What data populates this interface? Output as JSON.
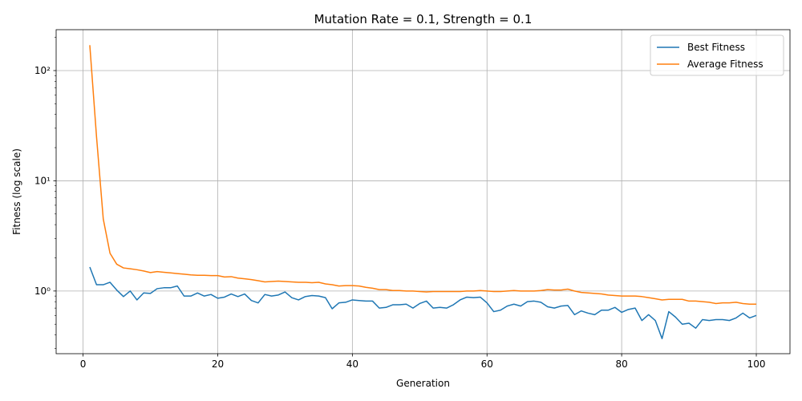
{
  "chart_data": {
    "type": "line",
    "title": "Mutation Rate = 0.1, Strength = 0.1",
    "xlabel": "Generation",
    "ylabel": "Fitness (log scale)",
    "xlim": [
      -4,
      105
    ],
    "ylim": [
      0.27,
      235
    ],
    "yscale": "log",
    "grid": true,
    "legend_position": "top-right",
    "x_ticks": [
      0,
      20,
      40,
      60,
      80,
      100
    ],
    "x_tick_labels": [
      "0",
      "20",
      "40",
      "60",
      "80",
      "100"
    ],
    "y_ticks": [
      1,
      10,
      100
    ],
    "y_tick_labels": [
      "10⁰",
      "10¹",
      "10²"
    ],
    "x": [
      1,
      2,
      3,
      4,
      5,
      6,
      7,
      8,
      9,
      10,
      11,
      12,
      13,
      14,
      15,
      16,
      17,
      18,
      19,
      20,
      21,
      22,
      23,
      24,
      25,
      26,
      27,
      28,
      29,
      30,
      31,
      32,
      33,
      34,
      35,
      36,
      37,
      38,
      39,
      40,
      41,
      42,
      43,
      44,
      45,
      46,
      47,
      48,
      49,
      50,
      51,
      52,
      53,
      54,
      55,
      56,
      57,
      58,
      59,
      60,
      61,
      62,
      63,
      64,
      65,
      66,
      67,
      68,
      69,
      70,
      71,
      72,
      73,
      74,
      75,
      76,
      77,
      78,
      79,
      80,
      81,
      82,
      83,
      84,
      85,
      86,
      87,
      88,
      89,
      90,
      91,
      92,
      93,
      94,
      95,
      96,
      97,
      98,
      99,
      100
    ],
    "series": [
      {
        "name": "Best Fitness",
        "color": "#1f77b4",
        "values": [
          1.65,
          1.14,
          1.14,
          1.2,
          1.02,
          0.89,
          1.0,
          0.83,
          0.96,
          0.95,
          1.05,
          1.07,
          1.07,
          1.11,
          0.9,
          0.9,
          0.96,
          0.9,
          0.93,
          0.86,
          0.88,
          0.94,
          0.89,
          0.94,
          0.82,
          0.78,
          0.93,
          0.9,
          0.92,
          0.98,
          0.87,
          0.83,
          0.89,
          0.91,
          0.9,
          0.87,
          0.69,
          0.78,
          0.79,
          0.83,
          0.82,
          0.81,
          0.81,
          0.7,
          0.71,
          0.75,
          0.75,
          0.76,
          0.7,
          0.77,
          0.81,
          0.7,
          0.71,
          0.7,
          0.75,
          0.83,
          0.88,
          0.87,
          0.88,
          0.78,
          0.65,
          0.67,
          0.73,
          0.76,
          0.73,
          0.8,
          0.81,
          0.79,
          0.72,
          0.7,
          0.73,
          0.74,
          0.61,
          0.66,
          0.63,
          0.61,
          0.67,
          0.67,
          0.71,
          0.64,
          0.68,
          0.7,
          0.54,
          0.61,
          0.54,
          0.37,
          0.65,
          0.58,
          0.5,
          0.51,
          0.46,
          0.55,
          0.54,
          0.55,
          0.55,
          0.54,
          0.57,
          0.63,
          0.57,
          0.6
        ]
      },
      {
        "name": "Average Fitness",
        "color": "#ff7f0e",
        "values": [
          170,
          25,
          4.5,
          2.2,
          1.75,
          1.62,
          1.59,
          1.56,
          1.52,
          1.47,
          1.5,
          1.48,
          1.46,
          1.44,
          1.42,
          1.4,
          1.39,
          1.39,
          1.38,
          1.38,
          1.34,
          1.35,
          1.31,
          1.29,
          1.27,
          1.24,
          1.21,
          1.22,
          1.23,
          1.22,
          1.21,
          1.2,
          1.2,
          1.19,
          1.2,
          1.16,
          1.14,
          1.11,
          1.12,
          1.12,
          1.11,
          1.08,
          1.06,
          1.03,
          1.03,
          1.01,
          1.01,
          1.0,
          1.0,
          0.99,
          0.98,
          0.99,
          0.99,
          0.99,
          0.99,
          0.99,
          1.0,
          1.0,
          1.01,
          1.0,
          0.99,
          0.99,
          1.0,
          1.01,
          1.0,
          1.0,
          1.0,
          1.01,
          1.03,
          1.02,
          1.02,
          1.04,
          1.0,
          0.97,
          0.96,
          0.95,
          0.94,
          0.92,
          0.91,
          0.9,
          0.9,
          0.9,
          0.89,
          0.87,
          0.85,
          0.83,
          0.84,
          0.84,
          0.84,
          0.81,
          0.81,
          0.8,
          0.79,
          0.77,
          0.78,
          0.78,
          0.79,
          0.77,
          0.76,
          0.76
        ]
      }
    ]
  }
}
